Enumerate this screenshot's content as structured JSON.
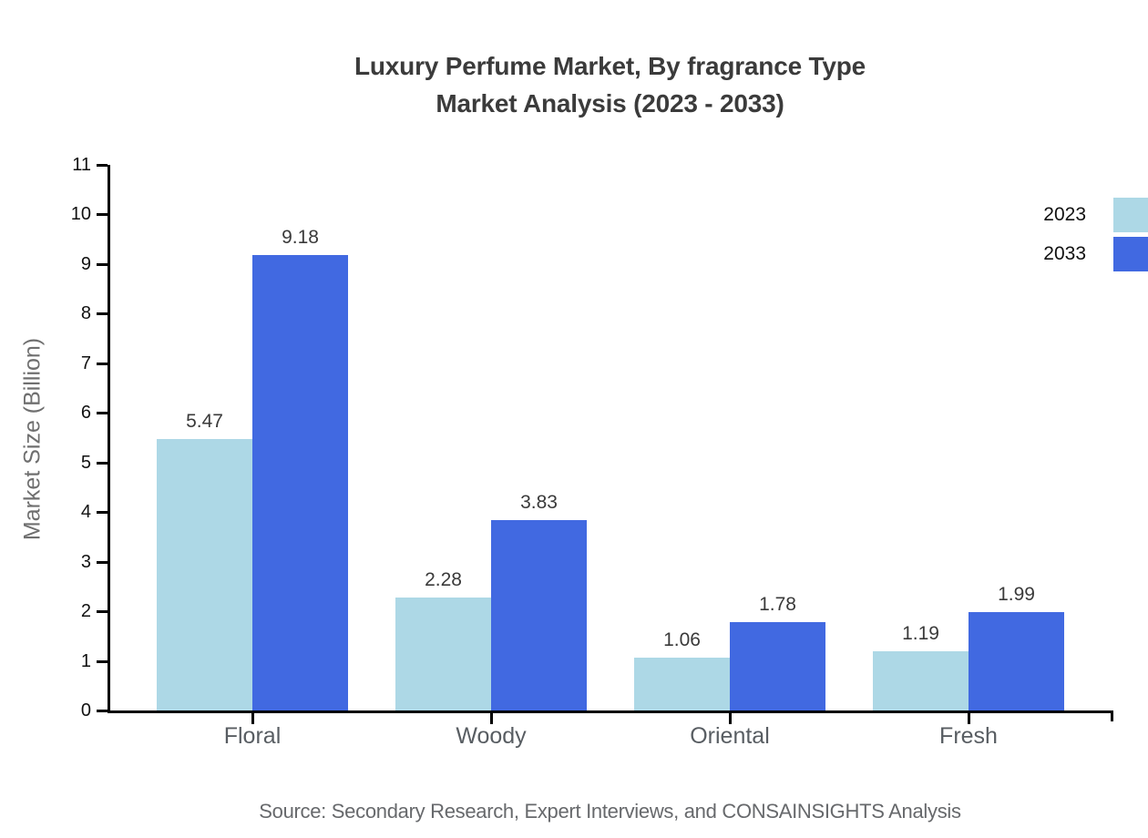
{
  "title": {
    "line1": "Luxury Perfume Market, By fragrance Type",
    "line2": "Market Analysis (2023 - 2033)"
  },
  "source_note": "Source: Secondary Research, Expert Interviews, and CONSAINSIGHTS Analysis",
  "colors": {
    "series_2023": "#ADD8E6",
    "series_2033": "#4169E1",
    "axis": "#000000",
    "title_text": "#3b3b3b",
    "value_label_text": "#3a3a3a",
    "category_text": "#585d62",
    "muted_text": "#6f6f6f"
  },
  "chart_data": {
    "type": "bar",
    "title": "Luxury Perfume Market, By fragrance Type Market Analysis (2023 - 2033)",
    "categories": [
      "Floral",
      "Woody",
      "Oriental",
      "Fresh"
    ],
    "series": [
      {
        "name": "2023",
        "color": "#ADD8E6",
        "values": [
          5.47,
          2.28,
          1.06,
          1.19
        ]
      },
      {
        "name": "2033",
        "color": "#4169E1",
        "values": [
          9.18,
          3.83,
          1.78,
          1.99
        ]
      }
    ],
    "xlabel": "",
    "ylabel": "Market Size (Billion)",
    "ylim": [
      0,
      11
    ],
    "yticks": [
      0,
      1,
      2,
      3,
      4,
      5,
      6,
      7,
      8,
      9,
      10,
      11
    ],
    "grid": false,
    "legend_position": "right",
    "value_labels_shown": true
  }
}
